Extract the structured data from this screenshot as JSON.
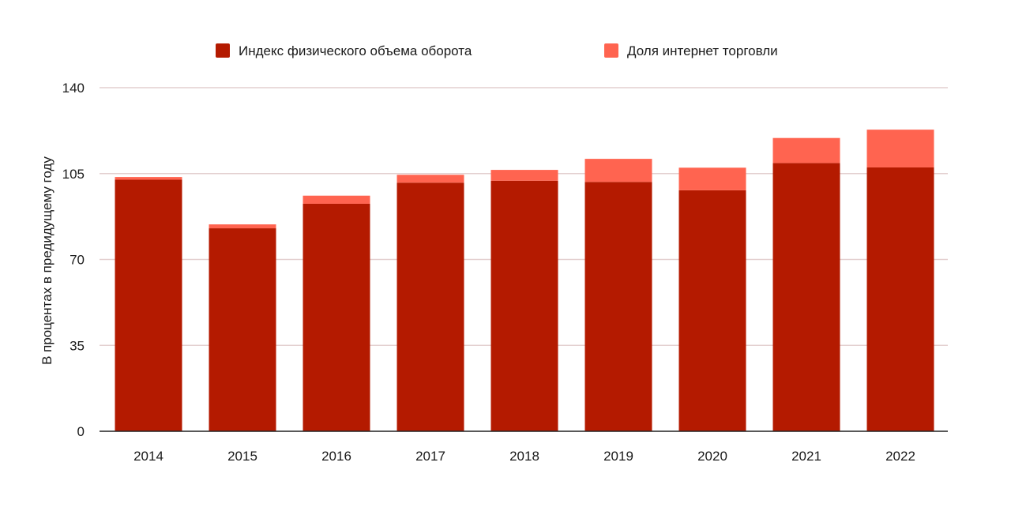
{
  "chart_data": {
    "type": "bar",
    "stacked": true,
    "categories": [
      "2014",
      "2015",
      "2016",
      "2017",
      "2018",
      "2019",
      "2020",
      "2021",
      "2022"
    ],
    "series": [
      {
        "name": "Индекс физического объема оборота",
        "color": "#b41a00",
        "values": [
          102.5,
          82.7,
          92.7,
          101.3,
          102.1,
          101.6,
          98.2,
          109.3,
          107.5
        ]
      },
      {
        "name": "Доля интернет торговли",
        "color": "#ff6450",
        "values": [
          1.1,
          1.6,
          3.3,
          3.2,
          4.4,
          9.4,
          9.2,
          10.2,
          15.4
        ]
      }
    ],
    "ylabel": "В процентах в предидущему году",
    "xlabel": "",
    "ylim": [
      0,
      140
    ],
    "yticks": [
      0,
      35,
      70,
      105,
      140
    ],
    "grid": true,
    "legend_position": "top"
  }
}
